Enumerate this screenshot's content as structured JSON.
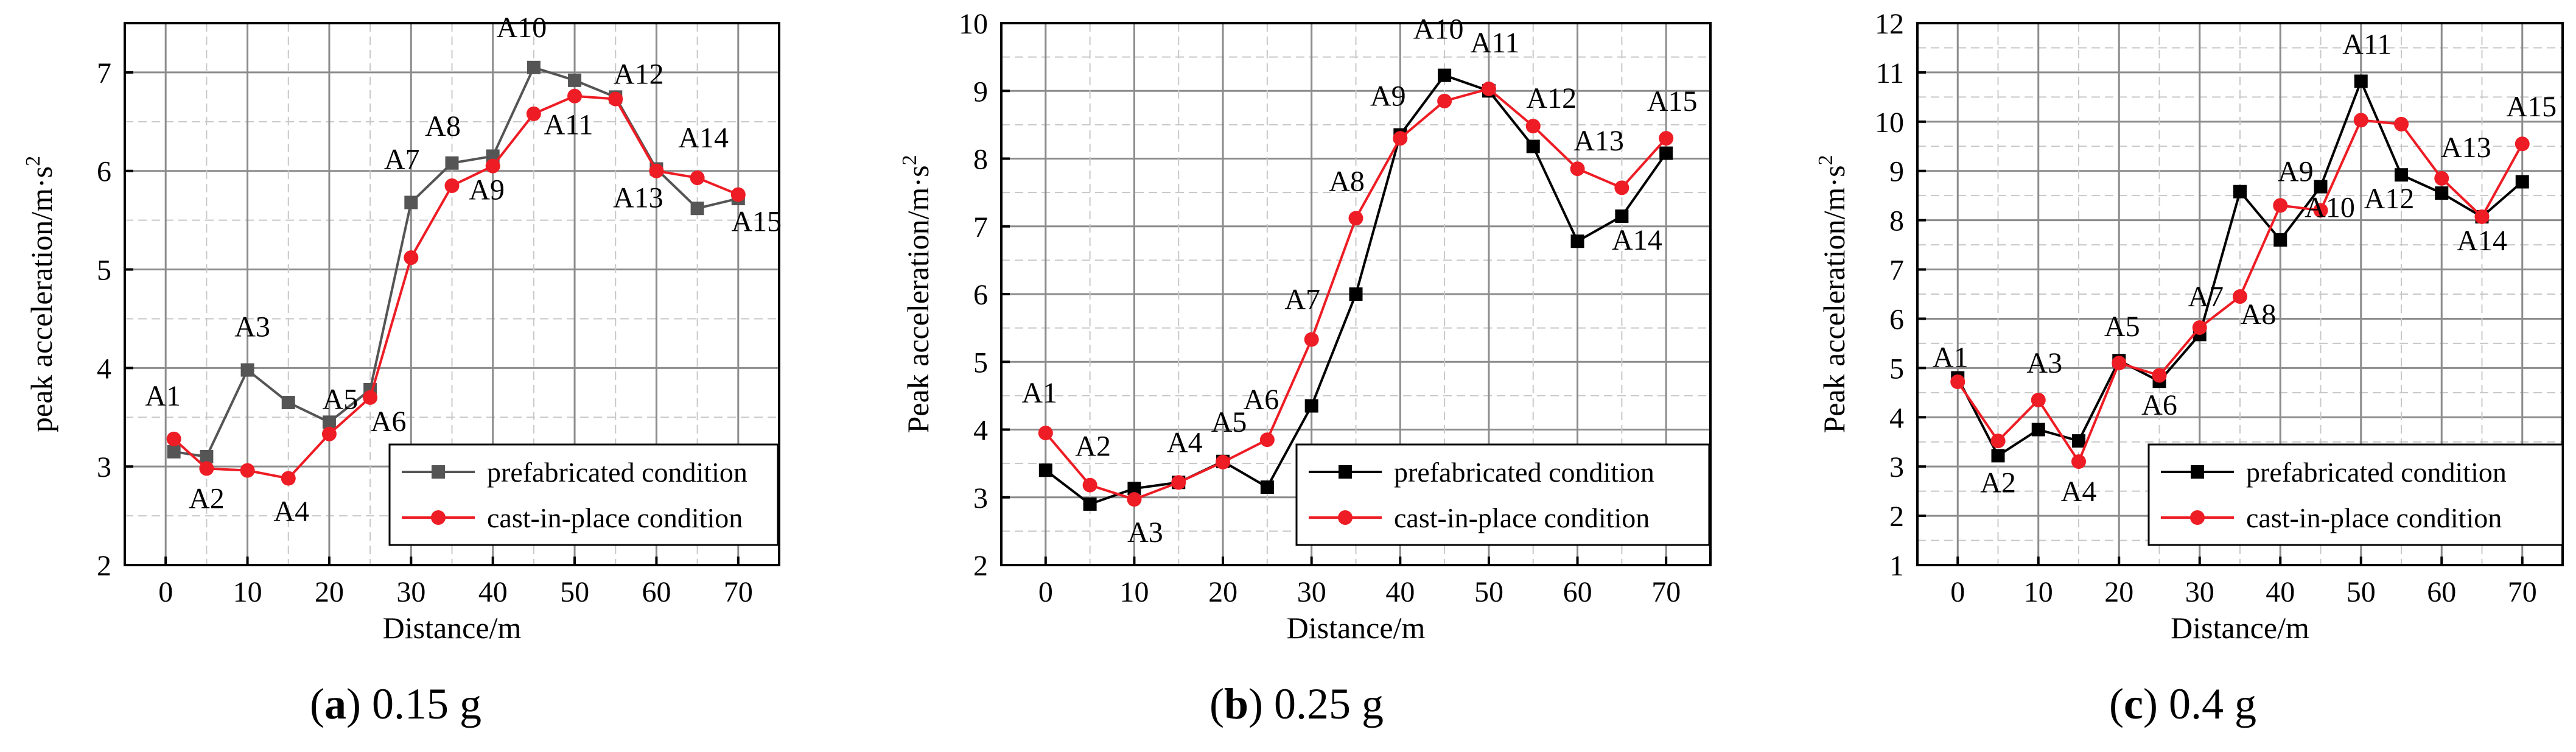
{
  "chart_data": [
    {
      "type": "line",
      "caption_letter": "a",
      "caption_text": "0.15 g",
      "xlabel": "Distance/m",
      "ylabel": "peak acceleration/m·s",
      "ylabel_sup": "2",
      "xlim": [
        -5,
        75
      ],
      "ylim": [
        2,
        7.5
      ],
      "xticks": [
        0,
        10,
        20,
        30,
        40,
        50,
        60,
        70
      ],
      "yticks": [
        2,
        3,
        4,
        5,
        6,
        7
      ],
      "marker_labels": [
        "A1",
        "A2",
        "A3",
        "A4",
        "A5",
        "A6",
        "A7",
        "A8",
        "A9",
        "A10",
        "A11",
        "A12",
        "A13",
        "A14",
        "A15"
      ],
      "x": [
        1,
        5,
        10,
        15,
        20,
        25,
        30,
        35,
        40,
        45,
        50,
        55,
        60,
        65,
        70
      ],
      "series": [
        {
          "name": "prefabricated condition",
          "color": "#555555",
          "marker": "square",
          "values": [
            3.15,
            3.1,
            3.98,
            3.65,
            3.45,
            3.78,
            5.68,
            6.08,
            6.15,
            7.05,
            6.92,
            6.75,
            6.02,
            5.62,
            5.72
          ]
        },
        {
          "name": "cast-in-place condition",
          "color": "#ee1c24",
          "marker": "circle",
          "values": [
            3.28,
            2.98,
            2.96,
            2.88,
            3.33,
            3.7,
            5.12,
            5.85,
            6.05,
            6.58,
            6.76,
            6.73,
            6.0,
            5.93,
            5.76
          ]
        }
      ],
      "legend_position": "bottom-right"
    },
    {
      "type": "line",
      "caption_letter": "b",
      "caption_text": "0.25 g",
      "xlabel": "Distance/m",
      "ylabel": "Peak acceleration/m·s",
      "ylabel_sup": "2",
      "xlim": [
        -5,
        75
      ],
      "ylim": [
        2,
        10
      ],
      "xticks": [
        0,
        10,
        20,
        30,
        40,
        50,
        60,
        70
      ],
      "yticks": [
        2,
        3,
        4,
        5,
        6,
        7,
        8,
        9,
        10
      ],
      "marker_labels": [
        "A1",
        "A2",
        "A3",
        "A4",
        "A5",
        "A6",
        "A7",
        "A8",
        "A9",
        "A10",
        "A11",
        "A12",
        "A13",
        "A14",
        "A15"
      ],
      "x": [
        0,
        5,
        10,
        15,
        20,
        25,
        30,
        35,
        40,
        45,
        50,
        55,
        60,
        65,
        70
      ],
      "series": [
        {
          "name": "prefabricated condition",
          "color": "#000000",
          "marker": "square",
          "values": [
            3.4,
            2.9,
            3.13,
            3.22,
            3.53,
            3.15,
            4.35,
            6.0,
            8.35,
            9.23,
            9.0,
            8.18,
            6.78,
            7.15,
            8.08
          ]
        },
        {
          "name": "cast-in-place condition",
          "color": "#ee1c24",
          "marker": "circle",
          "values": [
            3.95,
            3.18,
            2.97,
            3.22,
            3.52,
            3.85,
            5.33,
            7.12,
            8.3,
            8.85,
            9.03,
            8.48,
            7.85,
            7.57,
            8.3
          ]
        }
      ],
      "legend_position": "bottom-right"
    },
    {
      "type": "line",
      "caption_letter": "c",
      "caption_text": "0.4 g",
      "xlabel": "Distance/m",
      "ylabel": "Peak acceleration/m·s",
      "ylabel_sup": "2",
      "xlim": [
        -5,
        75
      ],
      "ylim": [
        1,
        12
      ],
      "xticks": [
        0,
        10,
        20,
        30,
        40,
        50,
        60,
        70
      ],
      "yticks": [
        1,
        2,
        3,
        4,
        5,
        6,
        7,
        8,
        9,
        10,
        11,
        12
      ],
      "marker_labels": [
        "A1",
        "A2",
        "A3",
        "A4",
        "A5",
        "A6",
        "A7",
        "A8",
        "A9",
        "A10",
        "A11",
        "A12",
        "A13",
        "A14",
        "A15"
      ],
      "x": [
        0,
        5,
        10,
        15,
        20,
        25,
        30,
        35,
        40,
        45,
        50,
        55,
        60,
        65,
        70
      ],
      "series": [
        {
          "name": "prefabricated condition",
          "color": "#000000",
          "marker": "square",
          "values": [
            4.8,
            3.22,
            3.75,
            3.52,
            5.15,
            4.73,
            5.68,
            8.58,
            7.6,
            8.68,
            10.82,
            8.92,
            8.55,
            8.07,
            8.78
          ]
        },
        {
          "name": "cast-in-place condition",
          "color": "#ee1c24",
          "marker": "circle",
          "values": [
            4.72,
            3.52,
            4.35,
            3.1,
            5.1,
            4.85,
            5.82,
            6.45,
            8.3,
            8.2,
            10.03,
            9.95,
            8.85,
            8.07,
            9.55
          ]
        }
      ],
      "legend_position": "bottom-right"
    }
  ]
}
